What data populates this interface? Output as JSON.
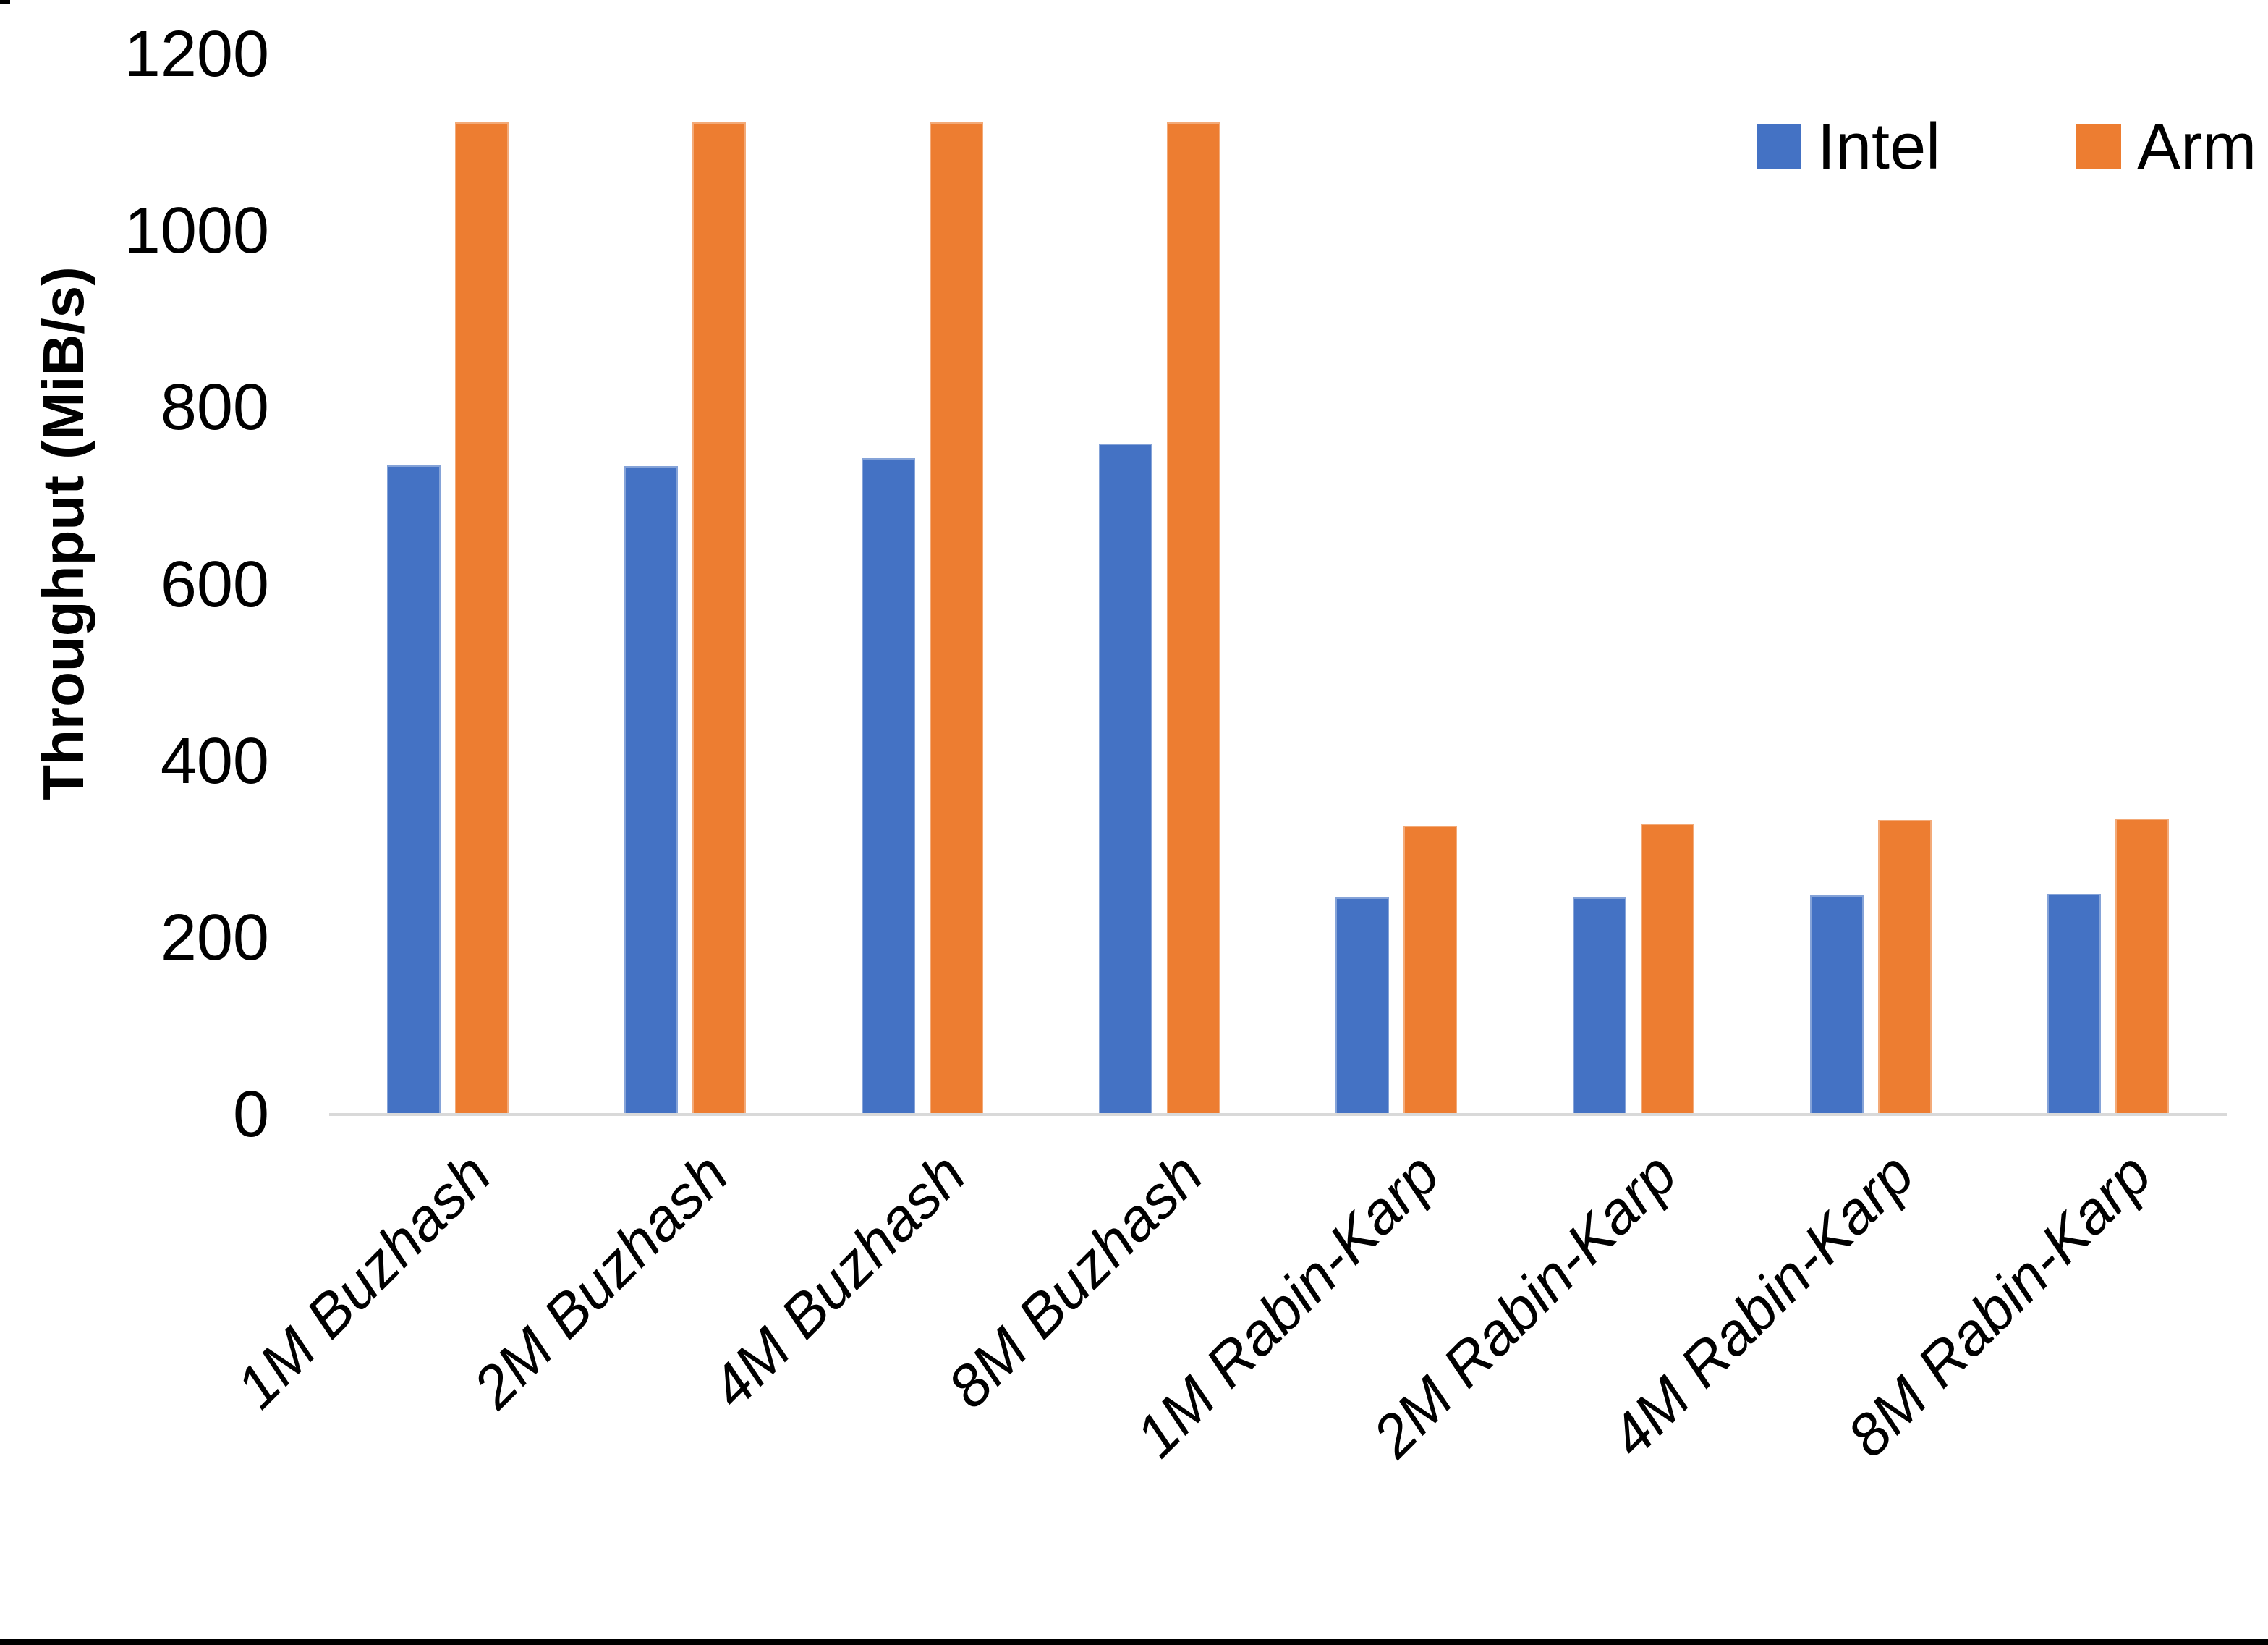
{
  "chart_data": {
    "type": "bar",
    "title": "",
    "categories": [
      "1M Buzhash",
      "2M Buzhash",
      "4M Buzhash",
      "8M Buzhash",
      "1M Rabin-Karp",
      "2M Rabin-Karp",
      "4M Rabin-Karp",
      "8M Rabin-Karp"
    ],
    "series": [
      {
        "name": "Intel",
        "color": "#4472C4",
        "values": [
          735,
          734,
          743,
          759,
          246,
          246,
          248,
          250
        ]
      },
      {
        "name": "Arm",
        "color": "#ED7D31",
        "values": [
          1123,
          1123,
          1123,
          1123,
          327,
          329,
          333,
          335
        ]
      }
    ],
    "xlabel": "",
    "ylabel": "Throughput (MiB/s)",
    "ylim": [
      0,
      1200
    ],
    "yticks": [
      0,
      200,
      400,
      600,
      800,
      1000,
      1200
    ],
    "grid": false,
    "legend_position": "top-right",
    "axis_line_color": "#D9D9D9",
    "text_color": "#000000",
    "background_color": "#FFFFFF"
  }
}
